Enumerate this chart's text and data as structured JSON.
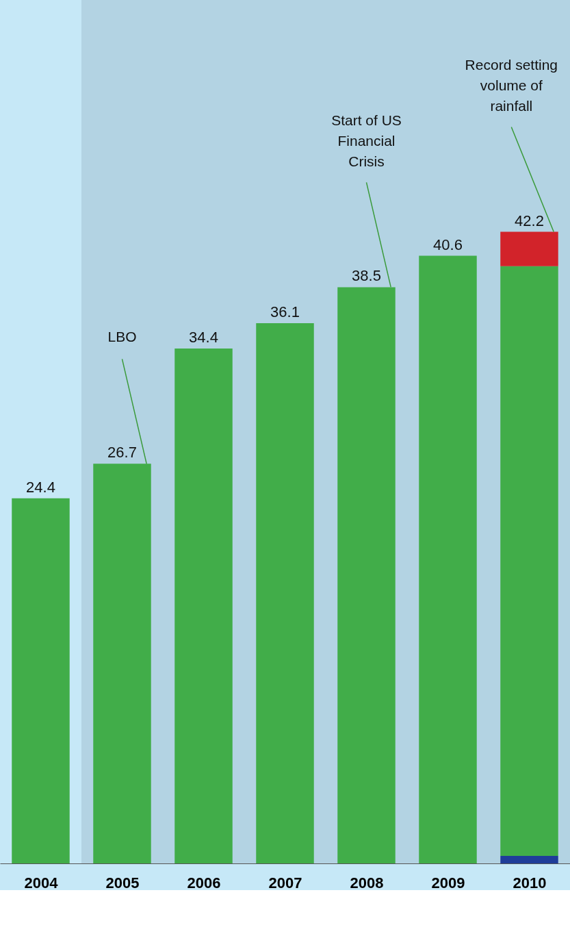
{
  "chart_data": {
    "type": "bar",
    "stacked": true,
    "categories": [
      "2004",
      "2005",
      "2006",
      "2007",
      "2008",
      "2009",
      "2010"
    ],
    "series": [
      {
        "color": "#1f3d99",
        "values": [
          null,
          null,
          null,
          null,
          null,
          null,
          0.5
        ]
      },
      {
        "color": "#41ad49",
        "values": [
          24.4,
          26.7,
          34.4,
          36.1,
          38.5,
          40.6,
          39.4
        ],
        "value_labels": [
          "24.4",
          "26.7",
          "34.4",
          "36.1",
          "38.5",
          "40.6",
          null
        ]
      },
      {
        "color": "#d2232a",
        "values": [
          null,
          null,
          null,
          null,
          null,
          null,
          2.3
        ]
      }
    ],
    "totals": [
      null,
      null,
      null,
      null,
      null,
      null,
      "42.2"
    ],
    "tick_labels": "x",
    "bands": [
      {
        "axis": "x",
        "from": "2005",
        "to": "2010",
        "color": "#b3d3e3"
      }
    ],
    "annotations": [
      "LBO",
      "Start of US Financial Crisis",
      "Record setting volume of rainfall"
    ]
  }
}
